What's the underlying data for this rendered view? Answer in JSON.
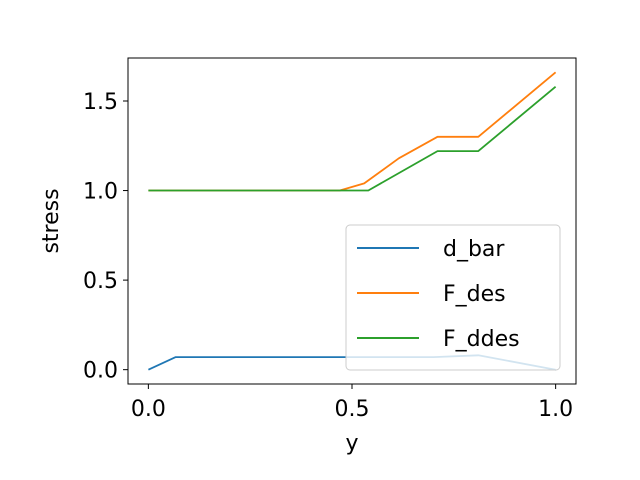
{
  "chart_data": {
    "type": "line",
    "xlabel": "y",
    "ylabel": "stress",
    "xlim": [
      -0.05,
      1.05
    ],
    "ylim": [
      -0.08,
      1.74
    ],
    "xticks": [
      0.0,
      0.5,
      1.0
    ],
    "xtick_labels": [
      "0.0",
      "0.5",
      "1.0"
    ],
    "yticks": [
      0.0,
      0.5,
      1.0,
      1.5
    ],
    "ytick_labels": [
      "0.0",
      "0.5",
      "1.0",
      "1.5"
    ],
    "grid": false,
    "legend_position": "lower-right",
    "series": [
      {
        "name": "d_bar",
        "color": "#1f77b4",
        "x": [
          0.0,
          0.067,
          0.3,
          0.5,
          0.7,
          0.81,
          1.0
        ],
        "y": [
          0.0,
          0.07,
          0.07,
          0.07,
          0.07,
          0.08,
          0.0
        ]
      },
      {
        "name": "F_des",
        "color": "#ff7f0e",
        "x": [
          0.0,
          0.2,
          0.47,
          0.53,
          0.615,
          0.71,
          0.81,
          1.0
        ],
        "y": [
          1.0,
          1.0,
          1.0,
          1.04,
          1.18,
          1.3,
          1.3,
          1.66
        ]
      },
      {
        "name": "F_ddes",
        "color": "#2ca02c",
        "x": [
          0.0,
          0.2,
          0.47,
          0.54,
          0.71,
          0.81,
          1.0
        ],
        "y": [
          1.0,
          1.0,
          1.0,
          1.0,
          1.22,
          1.22,
          1.58
        ]
      }
    ]
  }
}
